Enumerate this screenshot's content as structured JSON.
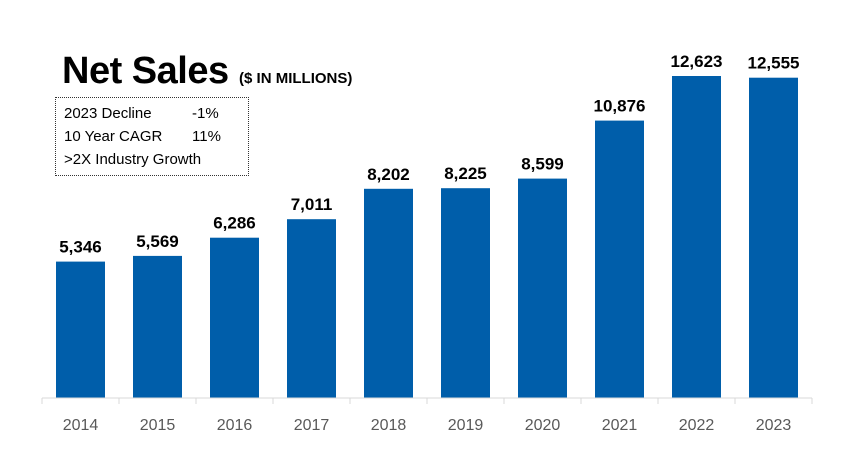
{
  "chart_data": {
    "type": "bar",
    "title": "Net Sales",
    "subtitle": "($ IN MILLIONS)",
    "categories": [
      "2014",
      "2015",
      "2016",
      "2017",
      "2018",
      "2019",
      "2020",
      "2021",
      "2022",
      "2023"
    ],
    "values": [
      5346,
      5569,
      6286,
      7011,
      8202,
      8225,
      8599,
      10876,
      12623,
      12555
    ],
    "value_labels": [
      "5,346",
      "5,569",
      "6,286",
      "7,011",
      "8,202",
      "8,225",
      "8,599",
      "10,876",
      "12,623",
      "12,555"
    ],
    "xlabel": "",
    "ylabel": "",
    "grid": false,
    "bar_color": "#005EAA",
    "annotations": [
      {
        "label": "2023 Decline",
        "value": "-1%"
      },
      {
        "label": "10 Year CAGR",
        "value": "11%"
      },
      {
        "label": ">2X Industry Growth",
        "value": ""
      }
    ]
  }
}
